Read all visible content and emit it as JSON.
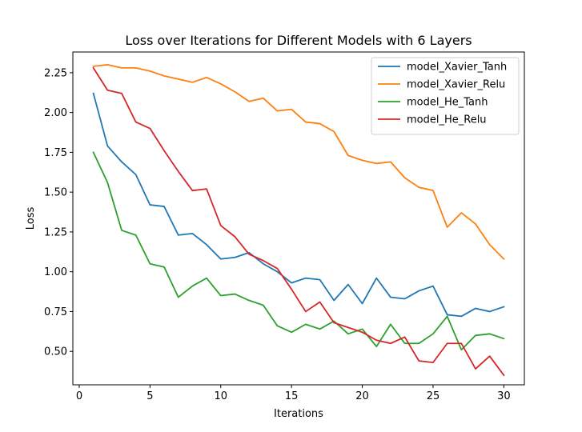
{
  "chart_data": {
    "type": "line",
    "title": "Loss over Iterations for Different Models with 6 Layers",
    "xlabel": "Iterations",
    "ylabel": "Loss",
    "xlim": [
      -0.45,
      31.45
    ],
    "ylim": [
      0.29,
      2.38
    ],
    "xticks": [
      0,
      5,
      10,
      15,
      20,
      25,
      30
    ],
    "xtick_labels": [
      "0",
      "5",
      "10",
      "15",
      "20",
      "25",
      "30"
    ],
    "yticks": [
      0.5,
      0.75,
      1.0,
      1.25,
      1.5,
      1.75,
      2.0,
      2.25
    ],
    "ytick_labels": [
      "0.50",
      "0.75",
      "1.00",
      "1.25",
      "1.50",
      "1.75",
      "2.00",
      "2.25"
    ],
    "grid": false,
    "legend_position": "top-right",
    "x": [
      1,
      2,
      3,
      4,
      5,
      6,
      7,
      8,
      9,
      10,
      11,
      12,
      13,
      14,
      15,
      16,
      17,
      18,
      19,
      20,
      21,
      22,
      23,
      24,
      25,
      26,
      27,
      28,
      29,
      30
    ],
    "series": [
      {
        "name": "model_Xavier_Tanh",
        "color": "#1f77b4",
        "values": [
          2.12,
          1.79,
          1.69,
          1.61,
          1.42,
          1.41,
          1.23,
          1.24,
          1.17,
          1.08,
          1.09,
          1.12,
          1.05,
          1.0,
          0.93,
          0.96,
          0.95,
          0.82,
          0.92,
          0.8,
          0.96,
          0.84,
          0.83,
          0.88,
          0.91,
          0.73,
          0.72,
          0.77,
          0.75,
          0.78
        ]
      },
      {
        "name": "model_Xavier_Relu",
        "color": "#ff7f0e",
        "values": [
          2.29,
          2.3,
          2.28,
          2.28,
          2.26,
          2.23,
          2.21,
          2.19,
          2.22,
          2.18,
          2.13,
          2.07,
          2.09,
          2.01,
          2.02,
          1.94,
          1.93,
          1.88,
          1.73,
          1.7,
          1.68,
          1.69,
          1.59,
          1.53,
          1.51,
          1.28,
          1.37,
          1.3,
          1.17,
          1.08
        ]
      },
      {
        "name": "model_He_Tanh",
        "color": "#2ca02c",
        "values": [
          1.75,
          1.56,
          1.26,
          1.23,
          1.05,
          1.03,
          0.84,
          0.91,
          0.96,
          0.85,
          0.86,
          0.82,
          0.79,
          0.66,
          0.62,
          0.67,
          0.64,
          0.69,
          0.61,
          0.64,
          0.53,
          0.67,
          0.55,
          0.55,
          0.61,
          0.72,
          0.51,
          0.6,
          0.61,
          0.58
        ]
      },
      {
        "name": "model_He_Relu",
        "color": "#d62728",
        "values": [
          2.28,
          2.14,
          2.12,
          1.94,
          1.9,
          1.76,
          1.63,
          1.51,
          1.52,
          1.29,
          1.22,
          1.11,
          1.07,
          1.02,
          0.89,
          0.75,
          0.81,
          0.68,
          0.65,
          0.62,
          0.57,
          0.55,
          0.59,
          0.44,
          0.43,
          0.55,
          0.55,
          0.39,
          0.47,
          0.35
        ]
      }
    ]
  }
}
